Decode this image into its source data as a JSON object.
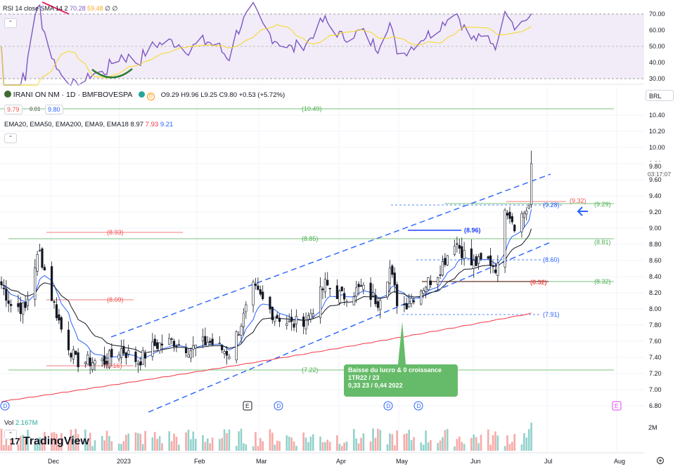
{
  "rsi": {
    "title": "RSI 14 close SMA 14 2",
    "value": "70.28",
    "sma": "59.48",
    "extra": "∅ ∅",
    "ticks": [
      "70.00",
      "60.00",
      "50.00",
      "40.00",
      "30.00"
    ]
  },
  "header": {
    "symbol": "IRANI ON NM · 1D · BMFBOVESPA",
    "ohlc": "O9.29 H9.96 L9.25 C9.80 +0.53 (+5.72%)",
    "bid": "9.79",
    "spread": "0.01",
    "ask": "9.80",
    "ema_title": "EMA20, EMA50, EMA200, EMA9, EMA18",
    "ema_v1": "8.97",
    "ema_v2": "7.93",
    "ema_v3": "9.21",
    "currency": "BRL"
  },
  "price_axis": {
    "ticks": [
      "10.40",
      "10.20",
      "10.00",
      "9.80",
      "9.60",
      "9.40",
      "9.20",
      "9.00",
      "8.80",
      "8.60",
      "8.40",
      "8.20",
      "8.00",
      "7.80",
      "7.60",
      "7.40",
      "7.20",
      "7.00",
      "6.80"
    ],
    "current_price": "9.80",
    "countdown": "03:17:07"
  },
  "level_labels": {
    "l1049": "(10.49)",
    "l893": "(8.93)",
    "l885": "(8.85)",
    "l881": "(8.81)",
    "l809": "(8.09)",
    "l722": "(7.22)",
    "l716": "(7.16)",
    "l896": "(8.96)",
    "l860": "(8.60)",
    "l832a": "(8.32)",
    "l832b": "(8.32)",
    "l791": "(7.91)",
    "l932": "(9.32)",
    "l929": "(9.29)",
    "l928": "(9.28)"
  },
  "annotation": {
    "line1": "Baisse du lucro & 0 croissance",
    "line2": "1TR22 / 23",
    "line3": "0,33 23 / 0,44 2022"
  },
  "volume": {
    "title": "Vol",
    "value": "2.167M",
    "tick": "2M"
  },
  "time_axis": [
    "Dec",
    "2023",
    "Feb",
    "Mar",
    "Apr",
    "May",
    "Jun",
    "Jul",
    "Aug"
  ],
  "event_markers": [
    "D",
    "E",
    "D",
    "D",
    "D",
    "E"
  ],
  "branding": {
    "logo": "TradingView"
  },
  "colors": {
    "up": "#26a69a",
    "down": "#ef5350",
    "channel": "#2962ff",
    "support": "#4caf50",
    "rsi": "#7e57c2",
    "ema200": "#f23645"
  },
  "chart_data": {
    "type": "candlestick",
    "title": "IRANI ON NM · 1D · BMFBOVESPA",
    "last_close": 9.8,
    "ylim": [
      6.8,
      10.4
    ],
    "horizontal_levels": [
      10.49,
      8.93,
      8.85,
      8.81,
      8.09,
      7.22,
      8.32,
      9.29
    ],
    "close_anchors": [
      {
        "date": "2022-11-21",
        "value": 8.3
      },
      {
        "date": "2022-11-25",
        "value": 8.05
      },
      {
        "date": "2022-12-01",
        "value": 8.0
      },
      {
        "date": "2022-12-05",
        "value": 8.55
      },
      {
        "date": "2022-12-07",
        "value": 8.7
      },
      {
        "date": "2022-12-12",
        "value": 8.15
      },
      {
        "date": "2022-12-16",
        "value": 7.75
      },
      {
        "date": "2022-12-22",
        "value": 7.35
      },
      {
        "date": "2023-01-03",
        "value": 7.35
      },
      {
        "date": "2023-01-10",
        "value": 7.5
      },
      {
        "date": "2023-01-17",
        "value": 7.35
      },
      {
        "date": "2023-01-24",
        "value": 7.55
      },
      {
        "date": "2023-02-01",
        "value": 7.6
      },
      {
        "date": "2023-02-08",
        "value": 7.5
      },
      {
        "date": "2023-02-15",
        "value": 7.6
      },
      {
        "date": "2023-02-24",
        "value": 7.45
      },
      {
        "date": "2023-03-02",
        "value": 7.9
      },
      {
        "date": "2023-03-06",
        "value": 8.25
      },
      {
        "date": "2023-03-14",
        "value": 7.95
      },
      {
        "date": "2023-03-22",
        "value": 7.8
      },
      {
        "date": "2023-03-29",
        "value": 7.9
      },
      {
        "date": "2023-04-05",
        "value": 8.3
      },
      {
        "date": "2023-04-12",
        "value": 8.15
      },
      {
        "date": "2023-04-20",
        "value": 8.25
      },
      {
        "date": "2023-04-27",
        "value": 8.1
      },
      {
        "date": "2023-05-02",
        "value": 8.5
      },
      {
        "date": "2023-05-05",
        "value": 8.1
      },
      {
        "date": "2023-05-08",
        "value": 8.05
      },
      {
        "date": "2023-05-15",
        "value": 8.25
      },
      {
        "date": "2023-05-22",
        "value": 8.45
      },
      {
        "date": "2023-05-29",
        "value": 8.85
      },
      {
        "date": "2023-06-05",
        "value": 8.55
      },
      {
        "date": "2023-06-12",
        "value": 8.6
      },
      {
        "date": "2023-06-16",
        "value": 8.5
      },
      {
        "date": "2023-06-19",
        "value": 9.3
      },
      {
        "date": "2023-06-23",
        "value": 9.05
      },
      {
        "date": "2023-06-27",
        "value": 9.2
      },
      {
        "date": "2023-06-29",
        "value": 9.27
      },
      {
        "date": "2023-06-30",
        "value": 9.8
      }
    ]
  }
}
